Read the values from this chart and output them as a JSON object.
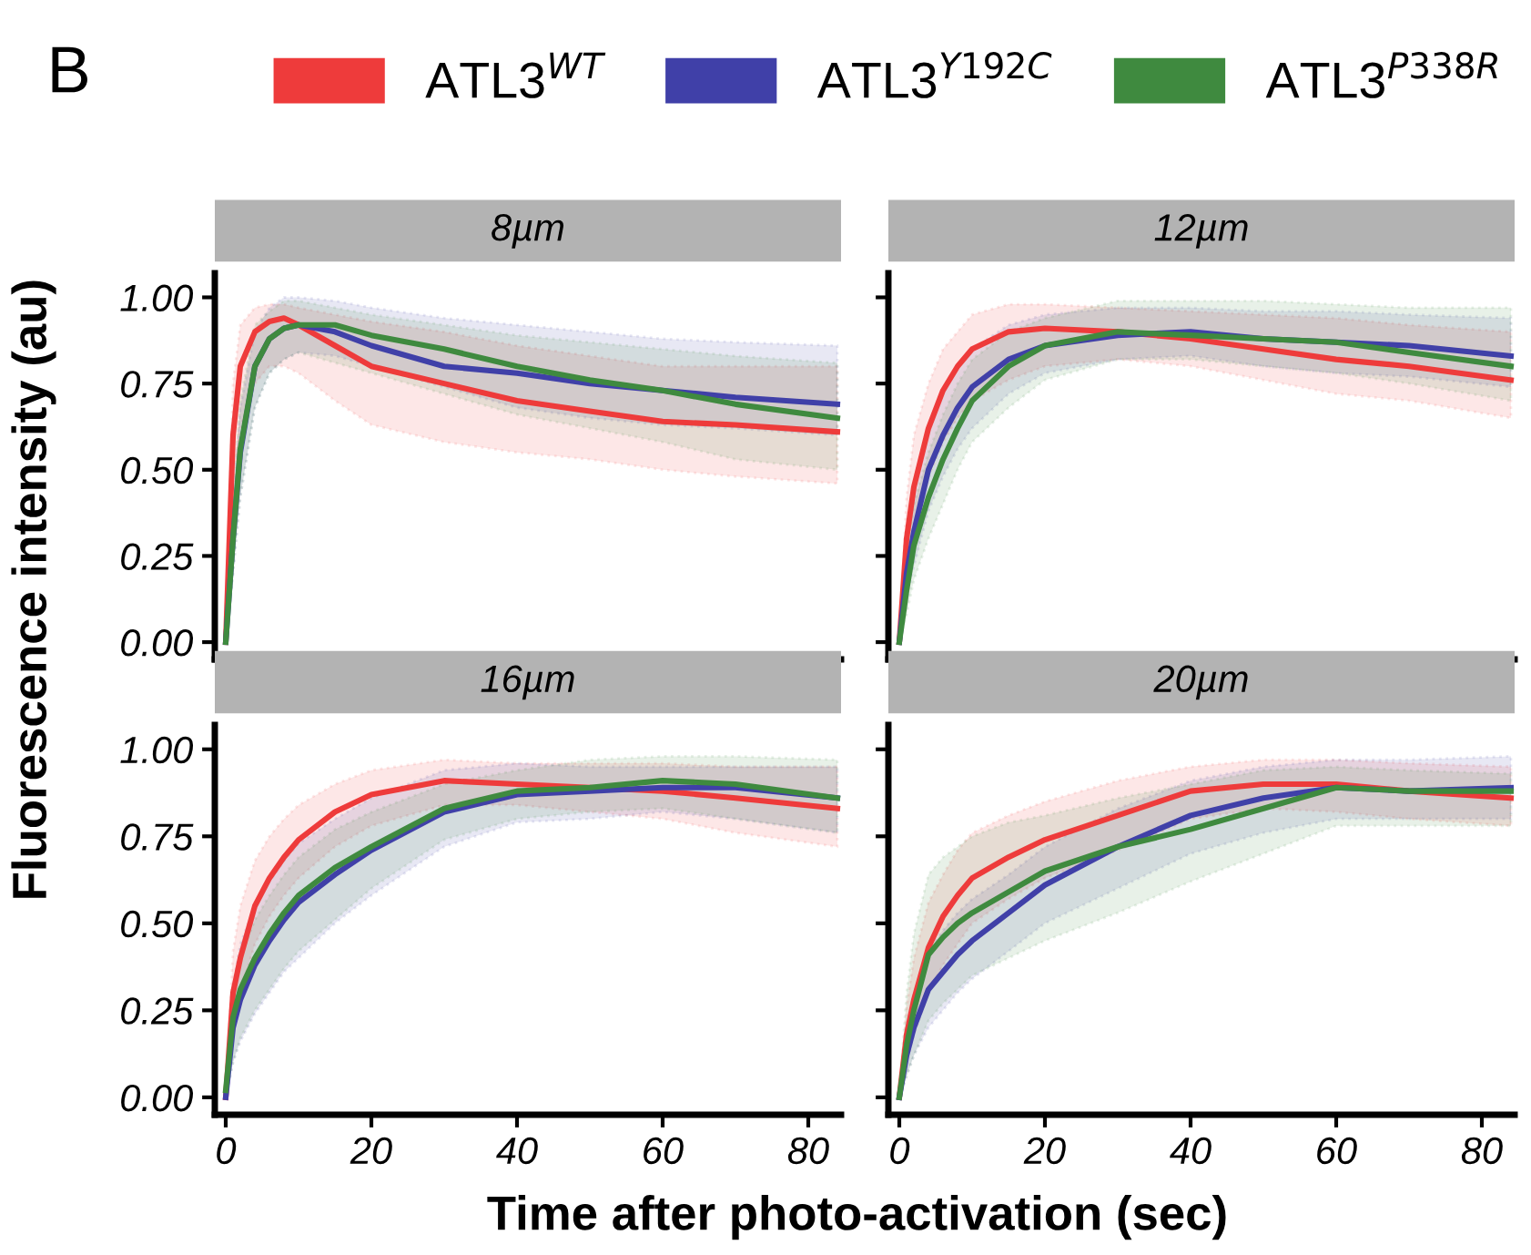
{
  "chart_data": [
    {
      "type": "line",
      "title": "8µm",
      "ylabel": "Fluorescence intensity (au)",
      "annotations": [
        "B"
      ],
      "legend": "top",
      "tick_labels": "y",
      "line_style": "solid",
      "marker": "none",
      "grid": false,
      "x": [
        0,
        1,
        2,
        4,
        6,
        8,
        10,
        15,
        20,
        30,
        40,
        50,
        60,
        70,
        84
      ],
      "xlim": [
        -1.5,
        84.5
      ],
      "ylim": [
        -0.05,
        1.07
      ],
      "xticks": [
        0,
        20,
        40,
        60,
        80
      ],
      "yticks": [
        {
          "value": 0,
          "label": "0.00"
        },
        {
          "value": 0.25,
          "label": "0.25"
        },
        {
          "value": 0.5,
          "label": "0.50"
        },
        {
          "value": 0.75,
          "label": "0.75"
        },
        {
          "value": 1,
          "label": "1.00"
        }
      ],
      "series": [
        {
          "name": "ATL3$^{WT}$",
          "color": "#ee3b3b",
          "values": [
            0,
            0.6,
            0.8,
            0.9,
            0.93,
            0.94,
            0.92,
            0.86,
            0.8,
            0.75,
            0.7,
            0.67,
            0.64,
            0.63,
            0.61
          ],
          "lower": [
            0,
            0.45,
            0.62,
            0.75,
            0.8,
            0.8,
            0.78,
            0.7,
            0.63,
            0.58,
            0.55,
            0.53,
            0.5,
            0.48,
            0.46
          ],
          "upper": [
            0,
            0.75,
            0.92,
            0.97,
            0.98,
            0.98,
            0.97,
            0.95,
            0.93,
            0.9,
            0.86,
            0.83,
            0.8,
            0.8,
            0.8
          ]
        },
        {
          "name": "ATL3$^{Y192C}$",
          "color": "#4040a8",
          "values": [
            0,
            0.3,
            0.55,
            0.8,
            0.88,
            0.91,
            0.92,
            0.9,
            0.86,
            0.8,
            0.78,
            0.75,
            0.73,
            0.71,
            0.69
          ],
          "lower": [
            0,
            0.2,
            0.42,
            0.68,
            0.78,
            0.82,
            0.84,
            0.83,
            0.8,
            0.74,
            0.68,
            0.65,
            0.63,
            0.62,
            0.6
          ],
          "upper": [
            0,
            0.4,
            0.68,
            0.9,
            0.97,
            1.0,
            1.0,
            0.99,
            0.97,
            0.94,
            0.92,
            0.9,
            0.88,
            0.87,
            0.86
          ]
        },
        {
          "name": "ATL3$^{P338R}$",
          "color": "#3f8a3f",
          "values": [
            0,
            0.3,
            0.56,
            0.8,
            0.88,
            0.91,
            0.92,
            0.92,
            0.89,
            0.85,
            0.8,
            0.76,
            0.73,
            0.69,
            0.65
          ],
          "lower": [
            0,
            0.2,
            0.42,
            0.68,
            0.78,
            0.82,
            0.84,
            0.81,
            0.78,
            0.72,
            0.66,
            0.62,
            0.58,
            0.53,
            0.5
          ],
          "upper": [
            0,
            0.42,
            0.7,
            0.92,
            0.96,
            0.99,
            0.99,
            0.97,
            0.95,
            0.92,
            0.89,
            0.87,
            0.85,
            0.83,
            0.81
          ]
        }
      ]
    },
    {
      "type": "line",
      "title": "12µm",
      "tick_labels": false,
      "line_style": "solid",
      "marker": "none",
      "grid": false,
      "x": [
        0,
        1,
        2,
        4,
        6,
        8,
        10,
        15,
        20,
        30,
        40,
        50,
        60,
        70,
        84
      ],
      "xlim": [
        -1.5,
        84.5
      ],
      "ylim": [
        -0.05,
        1.07
      ],
      "xticks": [
        0,
        20,
        40,
        60,
        80
      ],
      "yticks": [
        0,
        0.25,
        0.5,
        0.75,
        1
      ],
      "series": [
        {
          "color": "#ee3b3b",
          "values": [
            0,
            0.3,
            0.45,
            0.62,
            0.73,
            0.8,
            0.85,
            0.9,
            0.91,
            0.9,
            0.88,
            0.85,
            0.82,
            0.8,
            0.76
          ],
          "lower": [
            0,
            0.2,
            0.32,
            0.48,
            0.58,
            0.65,
            0.7,
            0.76,
            0.8,
            0.82,
            0.8,
            0.76,
            0.72,
            0.7,
            0.65
          ],
          "upper": [
            0,
            0.42,
            0.6,
            0.75,
            0.85,
            0.9,
            0.95,
            0.98,
            0.98,
            0.97,
            0.96,
            0.95,
            0.94,
            0.92,
            0.9
          ]
        },
        {
          "color": "#4040a8",
          "values": [
            0,
            0.2,
            0.32,
            0.5,
            0.6,
            0.68,
            0.74,
            0.82,
            0.86,
            0.89,
            0.9,
            0.88,
            0.87,
            0.86,
            0.83
          ],
          "lower": [
            0,
            0.12,
            0.22,
            0.38,
            0.48,
            0.56,
            0.62,
            0.72,
            0.78,
            0.82,
            0.83,
            0.8,
            0.78,
            0.77,
            0.74
          ],
          "upper": [
            0,
            0.3,
            0.45,
            0.62,
            0.72,
            0.8,
            0.85,
            0.92,
            0.95,
            0.97,
            0.97,
            0.96,
            0.96,
            0.95,
            0.94
          ]
        },
        {
          "color": "#3f8a3f",
          "values": [
            0,
            0.15,
            0.28,
            0.42,
            0.53,
            0.62,
            0.7,
            0.8,
            0.86,
            0.9,
            0.89,
            0.88,
            0.87,
            0.84,
            0.8
          ],
          "lower": [
            0,
            0.08,
            0.18,
            0.3,
            0.4,
            0.5,
            0.58,
            0.68,
            0.76,
            0.82,
            0.82,
            0.8,
            0.78,
            0.75,
            0.7
          ],
          "upper": [
            0,
            0.25,
            0.4,
            0.55,
            0.66,
            0.75,
            0.82,
            0.9,
            0.94,
            0.99,
            0.99,
            0.99,
            0.98,
            0.97,
            0.97
          ]
        }
      ]
    },
    {
      "type": "line",
      "title": "16µm",
      "xlabel": "Time after photo-activation (sec)",
      "line_style": "solid",
      "marker": "none",
      "grid": false,
      "x": [
        0,
        1,
        2,
        4,
        6,
        8,
        10,
        15,
        20,
        30,
        40,
        50,
        60,
        70,
        84
      ],
      "xlim": [
        -1.5,
        84.5
      ],
      "ylim": [
        -0.05,
        1.07
      ],
      "xticks": [
        0,
        20,
        40,
        60,
        80
      ],
      "yticks": [
        {
          "value": 0,
          "label": "0.00"
        },
        {
          "value": 0.25,
          "label": "0.25"
        },
        {
          "value": 0.5,
          "label": "0.50"
        },
        {
          "value": 0.75,
          "label": "0.75"
        },
        {
          "value": 1,
          "label": "1.00"
        }
      ],
      "series": [
        {
          "color": "#ee3b3b",
          "values": [
            0,
            0.3,
            0.4,
            0.55,
            0.63,
            0.69,
            0.74,
            0.82,
            0.87,
            0.91,
            0.9,
            0.89,
            0.88,
            0.86,
            0.83
          ],
          "lower": [
            0,
            0.2,
            0.3,
            0.44,
            0.52,
            0.58,
            0.63,
            0.72,
            0.78,
            0.84,
            0.84,
            0.82,
            0.8,
            0.76,
            0.72
          ],
          "upper": [
            0,
            0.42,
            0.55,
            0.68,
            0.75,
            0.8,
            0.84,
            0.9,
            0.94,
            0.97,
            0.96,
            0.96,
            0.96,
            0.95,
            0.95
          ]
        },
        {
          "color": "#4040a8",
          "values": [
            0,
            0.2,
            0.28,
            0.38,
            0.45,
            0.51,
            0.56,
            0.64,
            0.71,
            0.82,
            0.87,
            0.88,
            0.89,
            0.89,
            0.86
          ],
          "lower": [
            0,
            0.1,
            0.16,
            0.24,
            0.3,
            0.36,
            0.4,
            0.5,
            0.58,
            0.72,
            0.79,
            0.8,
            0.82,
            0.8,
            0.76
          ],
          "upper": [
            0,
            0.32,
            0.44,
            0.55,
            0.62,
            0.68,
            0.73,
            0.8,
            0.86,
            0.94,
            0.96,
            0.95,
            0.95,
            0.95,
            0.95
          ]
        },
        {
          "color": "#3f8a3f",
          "values": [
            0.02,
            0.23,
            0.31,
            0.4,
            0.47,
            0.53,
            0.58,
            0.66,
            0.72,
            0.83,
            0.88,
            0.89,
            0.91,
            0.9,
            0.86
          ],
          "lower": [
            0,
            0.1,
            0.17,
            0.25,
            0.31,
            0.37,
            0.42,
            0.51,
            0.6,
            0.74,
            0.8,
            0.82,
            0.83,
            0.8,
            0.76
          ],
          "upper": [
            0,
            0.28,
            0.4,
            0.51,
            0.58,
            0.64,
            0.69,
            0.77,
            0.82,
            0.9,
            0.94,
            0.97,
            0.98,
            0.98,
            0.97
          ]
        }
      ]
    },
    {
      "type": "line",
      "title": "20µm",
      "tick_labels": "x",
      "line_style": "solid",
      "marker": "none",
      "grid": false,
      "x": [
        0,
        1,
        2,
        4,
        6,
        8,
        10,
        15,
        20,
        30,
        40,
        50,
        60,
        70,
        84
      ],
      "xlim": [
        -1.5,
        84.5
      ],
      "ylim": [
        -0.05,
        1.07
      ],
      "xticks": [
        0,
        20,
        40,
        60,
        80
      ],
      "yticks": [
        0,
        0.25,
        0.5,
        0.75,
        1
      ],
      "series": [
        {
          "color": "#ee3b3b",
          "values": [
            0,
            0.18,
            0.28,
            0.43,
            0.52,
            0.58,
            0.63,
            0.69,
            0.74,
            0.81,
            0.88,
            0.9,
            0.9,
            0.88,
            0.86
          ],
          "lower": [
            0,
            0.1,
            0.18,
            0.3,
            0.38,
            0.44,
            0.5,
            0.57,
            0.63,
            0.71,
            0.8,
            0.83,
            0.82,
            0.8,
            0.78
          ],
          "upper": [
            0,
            0.26,
            0.4,
            0.56,
            0.64,
            0.71,
            0.76,
            0.81,
            0.85,
            0.91,
            0.95,
            0.97,
            0.97,
            0.96,
            0.95
          ]
        },
        {
          "color": "#4040a8",
          "values": [
            0,
            0.12,
            0.2,
            0.31,
            0.36,
            0.41,
            0.45,
            0.53,
            0.61,
            0.72,
            0.81,
            0.86,
            0.89,
            0.88,
            0.89
          ],
          "lower": [
            0,
            0.06,
            0.12,
            0.2,
            0.25,
            0.3,
            0.34,
            0.42,
            0.5,
            0.6,
            0.7,
            0.76,
            0.8,
            0.8,
            0.8
          ],
          "upper": [
            0,
            0.2,
            0.3,
            0.42,
            0.48,
            0.53,
            0.57,
            0.64,
            0.72,
            0.83,
            0.91,
            0.95,
            0.97,
            0.97,
            0.98
          ]
        },
        {
          "color": "#3f8a3f",
          "values": [
            0,
            0.15,
            0.25,
            0.41,
            0.46,
            0.5,
            0.53,
            0.59,
            0.65,
            0.72,
            0.77,
            0.83,
            0.89,
            0.88,
            0.88
          ],
          "lower": [
            0,
            0.06,
            0.12,
            0.22,
            0.27,
            0.31,
            0.35,
            0.4,
            0.45,
            0.53,
            0.62,
            0.7,
            0.78,
            0.78,
            0.78
          ],
          "upper": [
            0,
            0.3,
            0.47,
            0.64,
            0.69,
            0.72,
            0.75,
            0.79,
            0.81,
            0.86,
            0.9,
            0.94,
            0.95,
            0.94,
            0.93
          ]
        }
      ]
    }
  ]
}
